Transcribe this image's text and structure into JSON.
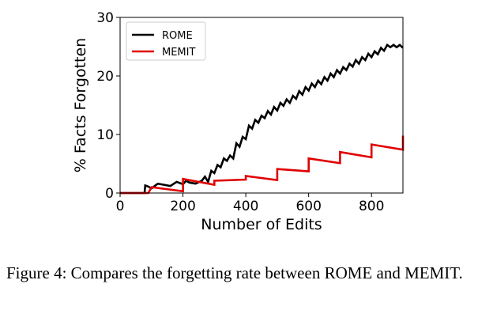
{
  "chart_data": {
    "type": "line",
    "title": "",
    "xlabel": "Number of Edits",
    "ylabel": "% Facts Forgotten",
    "xlim": [
      0,
      900
    ],
    "ylim": [
      0,
      30
    ],
    "x_ticks": [
      "0",
      "200",
      "400",
      "600",
      "800"
    ],
    "y_ticks": [
      "0",
      "10",
      "20",
      "30"
    ],
    "grid": false,
    "legend": "top-left",
    "series": [
      {
        "name": "ROME",
        "color": "#000000",
        "x": [
          0,
          78,
          80,
          90,
          100,
          120,
          140,
          160,
          180,
          200,
          210,
          220,
          240,
          260,
          270,
          280,
          290,
          300,
          310,
          320,
          330,
          340,
          350,
          360,
          370,
          380,
          390,
          400,
          410,
          420,
          430,
          440,
          450,
          460,
          470,
          480,
          490,
          500,
          510,
          520,
          530,
          540,
          550,
          560,
          570,
          580,
          590,
          600,
          610,
          620,
          630,
          640,
          650,
          660,
          670,
          680,
          690,
          700,
          710,
          720,
          730,
          740,
          750,
          760,
          770,
          780,
          790,
          800,
          810,
          820,
          830,
          840,
          850,
          860,
          870,
          880,
          890,
          900
        ],
        "y": [
          0.0,
          0.0,
          1.3,
          1.1,
          0.8,
          1.6,
          1.4,
          1.2,
          1.9,
          1.5,
          2.1,
          1.8,
          1.6,
          2.1,
          2.8,
          1.9,
          3.8,
          3.4,
          4.8,
          4.4,
          5.9,
          5.5,
          6.4,
          5.9,
          8.5,
          7.9,
          9.6,
          9.2,
          11.5,
          11.0,
          12.5,
          12.0,
          13.2,
          12.8,
          14.0,
          13.4,
          14.7,
          14.1,
          15.4,
          14.9,
          16.0,
          15.4,
          16.6,
          16.1,
          17.4,
          16.8,
          18.1,
          17.5,
          18.7,
          18.1,
          19.2,
          18.6,
          19.8,
          19.2,
          20.4,
          19.8,
          21.0,
          20.4,
          21.5,
          21.0,
          22.1,
          21.6,
          22.7,
          22.1,
          23.2,
          22.7,
          23.8,
          23.2,
          24.2,
          23.7,
          24.8,
          24.3,
          25.3,
          24.9,
          25.3,
          24.9,
          25.3,
          24.8
        ]
      },
      {
        "name": "MEMIT",
        "color": "#e00000",
        "x": [
          0,
          90,
          100,
          200,
          200,
          300,
          300,
          400,
          400,
          500,
          500,
          600,
          600,
          700,
          700,
          800,
          800,
          900,
          900
        ],
        "y": [
          0.0,
          0.0,
          1.0,
          0.3,
          2.4,
          1.4,
          2.1,
          2.3,
          2.9,
          2.2,
          4.1,
          3.7,
          5.9,
          5.1,
          7.0,
          6.1,
          8.3,
          7.4,
          9.8
        ]
      }
    ]
  },
  "caption": "Figure 4: Compares the forgetting rate between ROME and MEMIT."
}
